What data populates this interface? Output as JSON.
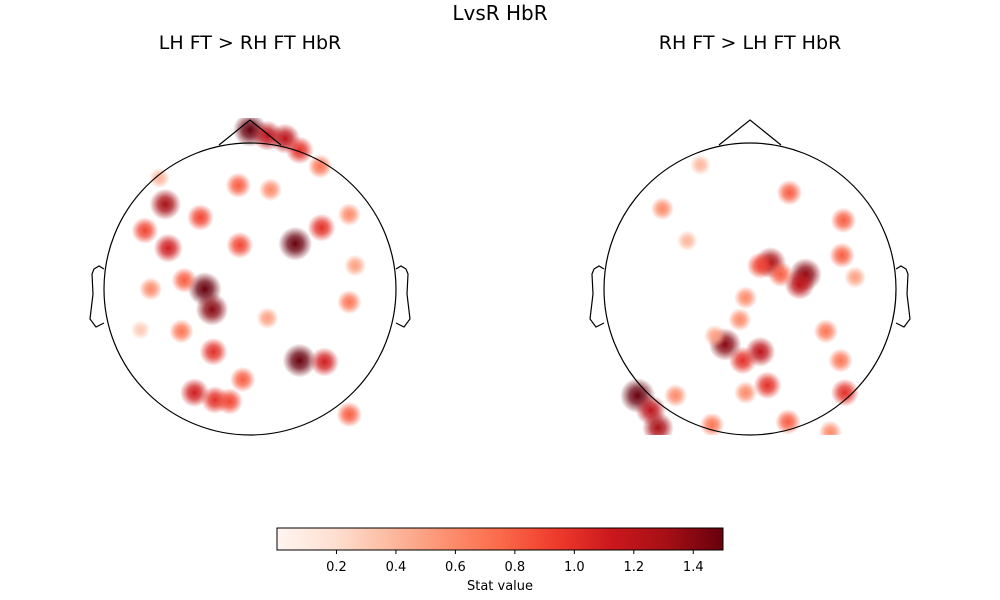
{
  "chart_data": {
    "type": "heatmap",
    "title": "LvsR HbR",
    "colormap": "Reds",
    "vlim": [
      0,
      1.5
    ],
    "coordinate_note": "head-normalized x (left-right) and y (back-front), head radius = 1",
    "panels": [
      {
        "title": "LH FT > RH FT HbR",
        "hotspots": [
          [
            0.0,
            1.09,
            1.5
          ],
          [
            0.12,
            1.05,
            1.2
          ],
          [
            0.24,
            1.03,
            1.2
          ],
          [
            0.34,
            0.95,
            1.0
          ],
          [
            0.48,
            0.84,
            0.7
          ],
          [
            -0.58,
            0.58,
            1.3
          ],
          [
            -0.72,
            0.4,
            0.9
          ],
          [
            -0.56,
            0.28,
            1.1
          ],
          [
            -0.34,
            0.49,
            0.9
          ],
          [
            -0.07,
            0.3,
            0.9
          ],
          [
            0.31,
            0.31,
            1.5
          ],
          [
            0.49,
            0.42,
            1.0
          ],
          [
            0.68,
            0.51,
            0.6
          ],
          [
            -0.31,
            0.0,
            1.5
          ],
          [
            -0.26,
            -0.14,
            1.4
          ],
          [
            -0.45,
            0.06,
            0.8
          ],
          [
            -0.68,
            0.0,
            0.6
          ],
          [
            -0.25,
            -0.43,
            1.0
          ],
          [
            0.34,
            -0.49,
            1.5
          ],
          [
            0.51,
            -0.5,
            1.1
          ],
          [
            -0.38,
            -0.71,
            1.1
          ],
          [
            -0.24,
            -0.76,
            1.0
          ],
          [
            -0.14,
            -0.77,
            0.9
          ],
          [
            -0.05,
            -0.62,
            0.8
          ],
          [
            0.68,
            -0.86,
            0.8
          ],
          [
            -0.08,
            0.71,
            0.8
          ],
          [
            0.14,
            0.68,
            0.6
          ],
          [
            0.68,
            -0.09,
            0.7
          ],
          [
            0.72,
            0.16,
            0.5
          ],
          [
            -0.47,
            -0.29,
            0.7
          ],
          [
            -0.62,
            0.76,
            0.4
          ],
          [
            0.12,
            -0.2,
            0.5
          ],
          [
            -0.75,
            -0.28,
            0.3
          ]
        ]
      },
      {
        "title": "RH FT > LH FT HbR",
        "hotspots": [
          [
            -0.34,
            0.85,
            0.4
          ],
          [
            0.27,
            0.66,
            0.8
          ],
          [
            -0.6,
            0.55,
            0.6
          ],
          [
            0.64,
            0.47,
            0.8
          ],
          [
            -0.43,
            0.33,
            0.4
          ],
          [
            0.14,
            0.18,
            1.3
          ],
          [
            0.38,
            0.1,
            1.4
          ],
          [
            0.34,
            0.03,
            1.2
          ],
          [
            0.07,
            0.16,
            0.9
          ],
          [
            0.21,
            0.1,
            0.8
          ],
          [
            0.63,
            0.23,
            0.8
          ],
          [
            0.72,
            0.08,
            0.5
          ],
          [
            -0.03,
            -0.06,
            0.6
          ],
          [
            -0.07,
            -0.21,
            0.6
          ],
          [
            -0.17,
            -0.38,
            1.4
          ],
          [
            0.07,
            -0.43,
            1.2
          ],
          [
            -0.05,
            -0.49,
            1.0
          ],
          [
            0.52,
            -0.29,
            0.7
          ],
          [
            0.62,
            -0.49,
            0.7
          ],
          [
            0.12,
            -0.66,
            1.0
          ],
          [
            -0.03,
            -0.71,
            0.6
          ],
          [
            0.65,
            -0.71,
            1.0
          ],
          [
            -0.77,
            -0.73,
            1.6
          ],
          [
            -0.68,
            -0.83,
            1.2
          ],
          [
            -0.63,
            -0.95,
            1.3
          ],
          [
            -0.51,
            -0.73,
            0.6
          ],
          [
            -0.26,
            -0.93,
            0.7
          ],
          [
            0.26,
            -0.91,
            0.8
          ],
          [
            0.55,
            -0.98,
            0.6
          ],
          [
            -0.24,
            -0.32,
            0.5
          ]
        ]
      }
    ],
    "colorbar": {
      "label": "Stat value",
      "ticks": [
        0.2,
        0.4,
        0.6,
        0.8,
        1.0,
        1.2,
        1.4
      ],
      "tick_labels": [
        "0.2",
        "0.4",
        "0.6",
        "0.8",
        "1.0",
        "1.2",
        "1.4"
      ]
    }
  }
}
